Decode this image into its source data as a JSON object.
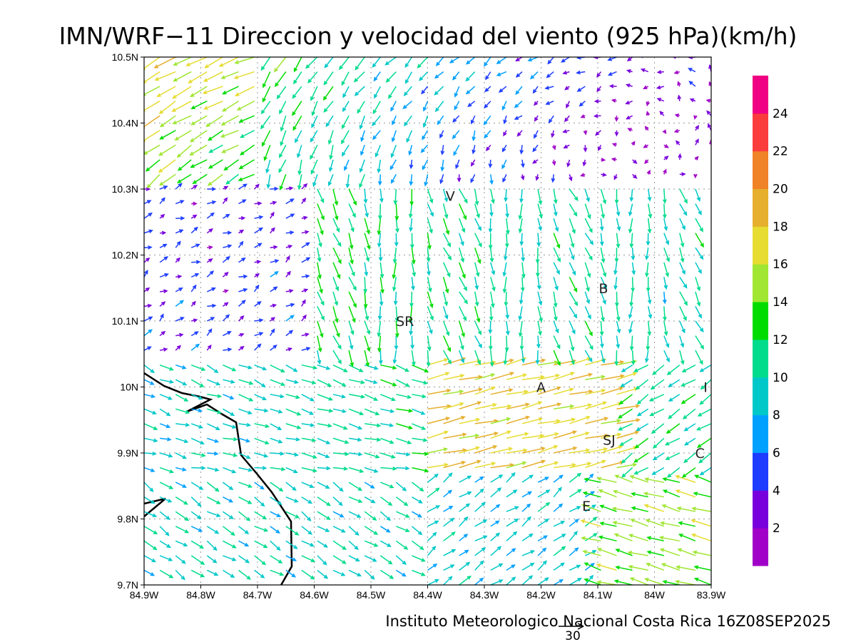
{
  "title": "IMN/WRF−11 Direccion y velocidad del viento (925 hPa)(km/h)",
  "credit": "Instituto Meteorologico Nacional Costa Rica 16Z08SEP2025",
  "reference_vector": {
    "label": "30"
  },
  "chart_data": {
    "type": "vector_field",
    "x_ticks": [
      "84.9W",
      "84.8W",
      "84.7W",
      "84.6W",
      "84.5W",
      "84.4W",
      "84.3W",
      "84.2W",
      "84.1W",
      "84W",
      "83.9W"
    ],
    "y_ticks": [
      "10.5N",
      "10.4N",
      "10.3N",
      "10.2N",
      "10.1N",
      "10N",
      "9.9N",
      "9.8N",
      "9.7N"
    ],
    "lon_range": [
      -84.9,
      -83.9
    ],
    "lat_range": [
      9.7,
      10.5
    ],
    "grid": "dotted",
    "colorbar": {
      "labels": [
        "2",
        "4",
        "6",
        "8",
        "10",
        "12",
        "14",
        "16",
        "18",
        "20",
        "22",
        "24"
      ],
      "colors": [
        "#a000c8",
        "#7800dc",
        "#1e3cff",
        "#00a0ff",
        "#00c8c8",
        "#00dc8c",
        "#00dc00",
        "#a0e632",
        "#e6dc32",
        "#e6af2d",
        "#f08228",
        "#fa3c3c",
        "#f00082"
      ]
    },
    "places": [
      {
        "label": "V",
        "lon": -84.36,
        "lat": 10.29
      },
      {
        "label": "B",
        "lon": -84.09,
        "lat": 10.15
      },
      {
        "label": "SR",
        "lon": -84.44,
        "lat": 10.1
      },
      {
        "label": "A",
        "lon": -84.2,
        "lat": 10.0
      },
      {
        "label": "I",
        "lon": -83.91,
        "lat": 10.0
      },
      {
        "label": "SJ",
        "lon": -84.08,
        "lat": 9.92
      },
      {
        "label": "C",
        "lon": -83.92,
        "lat": 9.9
      },
      {
        "label": "E",
        "lon": -84.12,
        "lat": 9.82
      }
    ]
  }
}
